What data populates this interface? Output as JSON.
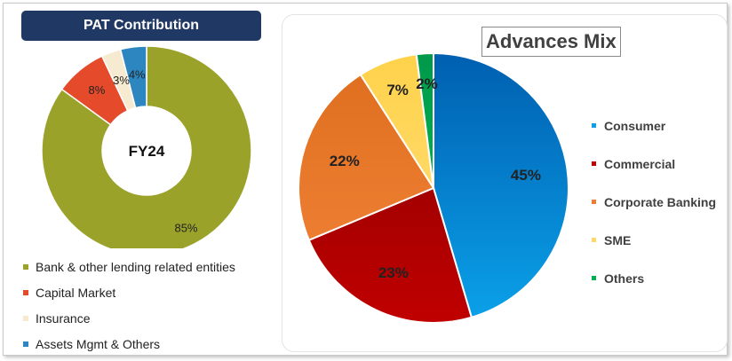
{
  "pat": {
    "header": "PAT Contribution",
    "center_label": "FY24"
  },
  "adv": {
    "title": "Advances Mix"
  },
  "chart_data": [
    {
      "type": "pie",
      "variant": "donut",
      "title": "PAT Contribution",
      "center_label": "FY24",
      "legend_position": "bottom",
      "categories": [
        "Bank & other lending related entities",
        "Capital Market",
        "Insurance",
        "Assets Mgmt & Others"
      ],
      "values": [
        85,
        8,
        3,
        4
      ],
      "labels": [
        "85%",
        "8%",
        "3%",
        "4%"
      ],
      "colors": [
        "#9aa22a",
        "#e54b2b",
        "#f6ead0",
        "#2e86c1"
      ]
    },
    {
      "type": "pie",
      "title": "Advances Mix",
      "legend_position": "right",
      "categories": [
        "Consumer",
        "Commercial",
        "Corporate Banking",
        "SME",
        "Others"
      ],
      "values": [
        45,
        23,
        22,
        7,
        2
      ],
      "labels": [
        "45%",
        "23%",
        "22%",
        "7%",
        "2%"
      ],
      "colors": [
        "#0aa0e8",
        "#c00000",
        "#ed7d31",
        "#ffd966",
        "#00b050"
      ]
    }
  ]
}
